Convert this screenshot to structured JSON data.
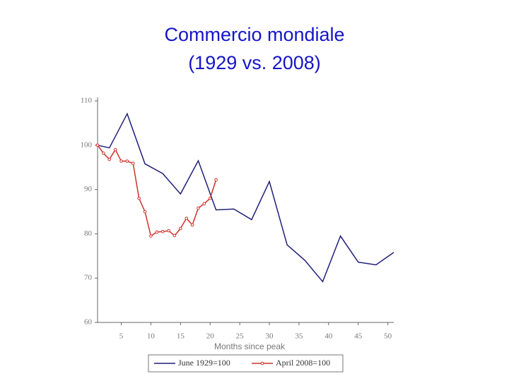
{
  "chart_data": {
    "type": "line",
    "title": "Commercio mondiale",
    "subtitle": "(1929 vs. 2008)",
    "x_label": "Months since peak",
    "xlim": [
      1,
      51
    ],
    "xticks": [
      5,
      10,
      15,
      20,
      25,
      30,
      35,
      40,
      45,
      50
    ],
    "ylim": [
      60,
      110
    ],
    "yticks": [
      60,
      70,
      80,
      90,
      100,
      110
    ],
    "series": [
      {
        "name": "June 1929=100",
        "color": "#1f1f7a",
        "marker": false,
        "x": [
          1,
          3,
          6,
          9,
          12,
          15,
          18,
          21,
          24,
          27,
          30,
          33,
          36,
          39,
          42,
          45,
          48,
          51
        ],
        "values": [
          100,
          99.4,
          107.1,
          95.8,
          93.6,
          89,
          96.5,
          85.4,
          85.6,
          83.2,
          91.8,
          77.5,
          74,
          69.2,
          79.5,
          73.6,
          73,
          75.8
        ]
      },
      {
        "name": "April 2008=100",
        "color": "#d0302a",
        "marker": true,
        "x": [
          1,
          2,
          3,
          4,
          5,
          6,
          7,
          8,
          9,
          10,
          11,
          12,
          13,
          14,
          15,
          16,
          17,
          18,
          19,
          20,
          21
        ],
        "values": [
          100,
          98.2,
          96.8,
          99,
          96.4,
          96.4,
          95.9,
          88,
          85,
          79.5,
          80.4,
          80.5,
          80.7,
          79.6,
          81.2,
          83.5,
          82,
          85.8,
          86.8,
          88,
          92.2
        ]
      }
    ]
  }
}
